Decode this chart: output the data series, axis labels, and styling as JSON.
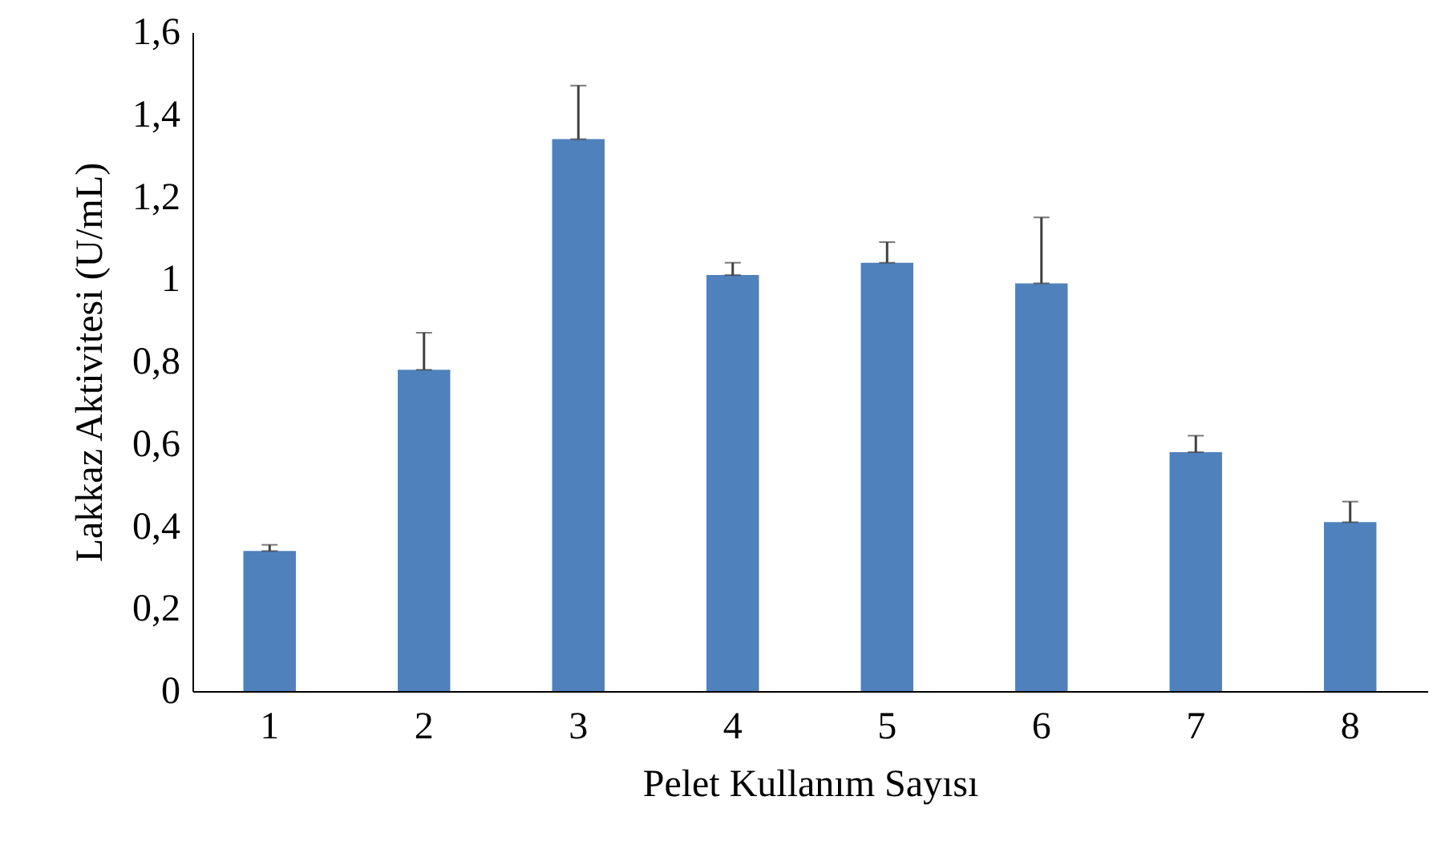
{
  "chart_data": {
    "type": "bar",
    "xlabel": "Pelet Kullanım Sayısı",
    "ylabel": "Lakkaz Aktivitesi (U/mL)",
    "categories": [
      "1",
      "2",
      "3",
      "4",
      "5",
      "6",
      "7",
      "8"
    ],
    "values": [
      0.34,
      0.78,
      1.34,
      1.01,
      1.04,
      0.99,
      0.58,
      0.41
    ],
    "errors": [
      0.015,
      0.09,
      0.13,
      0.03,
      0.05,
      0.16,
      0.04,
      0.05
    ],
    "color": "#4f81bd",
    "ylim": [
      0,
      1.6
    ],
    "yticks": [
      0,
      {
        "value": 0.2,
        "label": "0,2"
      },
      {
        "value": 0.4,
        "label": "0,4"
      },
      {
        "value": 0.6,
        "label": "0,6"
      },
      {
        "value": 0.8,
        "label": "0,8"
      },
      1,
      {
        "value": 1.2,
        "label": "1,2"
      },
      {
        "value": 1.4,
        "label": "1,4"
      },
      {
        "value": 1.6,
        "label": "1,6"
      }
    ],
    "grid": false
  }
}
